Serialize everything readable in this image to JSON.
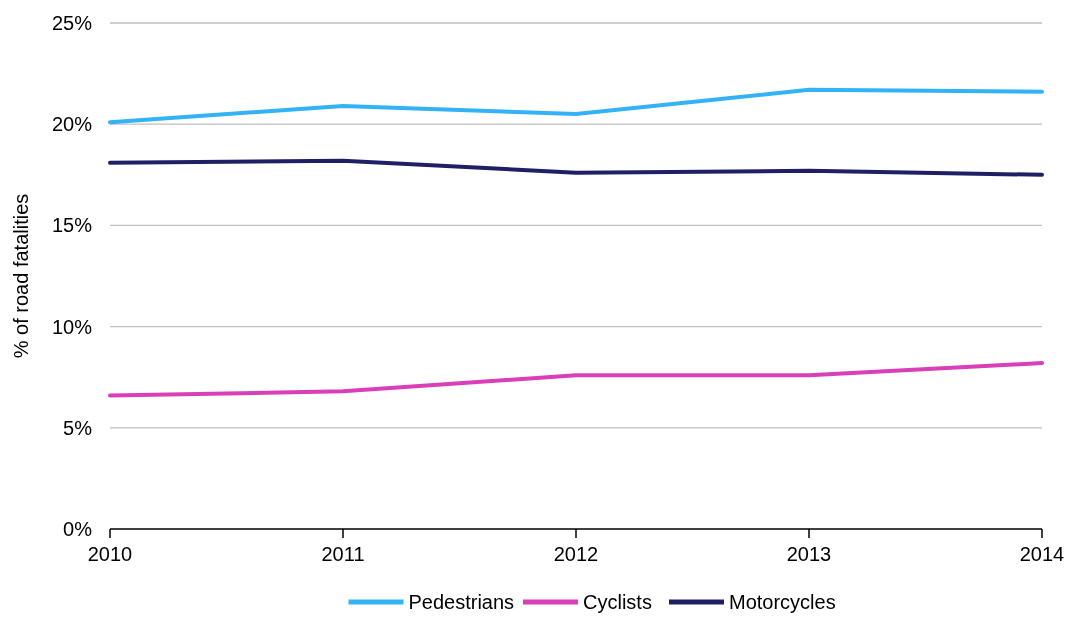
{
  "chart_data": {
    "type": "line",
    "ylabel": "% of road fatalities",
    "x": [
      2010,
      2011,
      2012,
      2013,
      2014
    ],
    "xlim": [
      2010,
      2014
    ],
    "xticks": [
      2010,
      2011,
      2012,
      2013,
      2014
    ],
    "ylim": [
      0,
      25
    ],
    "yticks": [
      {
        "value": 0,
        "label": "0%"
      },
      {
        "value": 5,
        "label": "5%"
      },
      {
        "value": 10,
        "label": "10%"
      },
      {
        "value": 15,
        "label": "15%"
      },
      {
        "value": 20,
        "label": "20%"
      },
      {
        "value": 25,
        "label": "25%"
      }
    ],
    "grid": "y",
    "legend": "bottom",
    "marker": "none",
    "line_style": "solid",
    "series": [
      {
        "name": "Pedestrians",
        "color": "#33b3f5",
        "values": [
          20.1,
          20.9,
          20.5,
          21.7,
          21.6
        ]
      },
      {
        "name": "Cyclists",
        "color": "#d93fb8",
        "values": [
          6.6,
          6.8,
          7.6,
          7.6,
          8.2
        ]
      },
      {
        "name": "Motorcycles",
        "color": "#1f1f66",
        "values": [
          18.1,
          18.2,
          17.6,
          17.7,
          17.5
        ]
      }
    ]
  }
}
